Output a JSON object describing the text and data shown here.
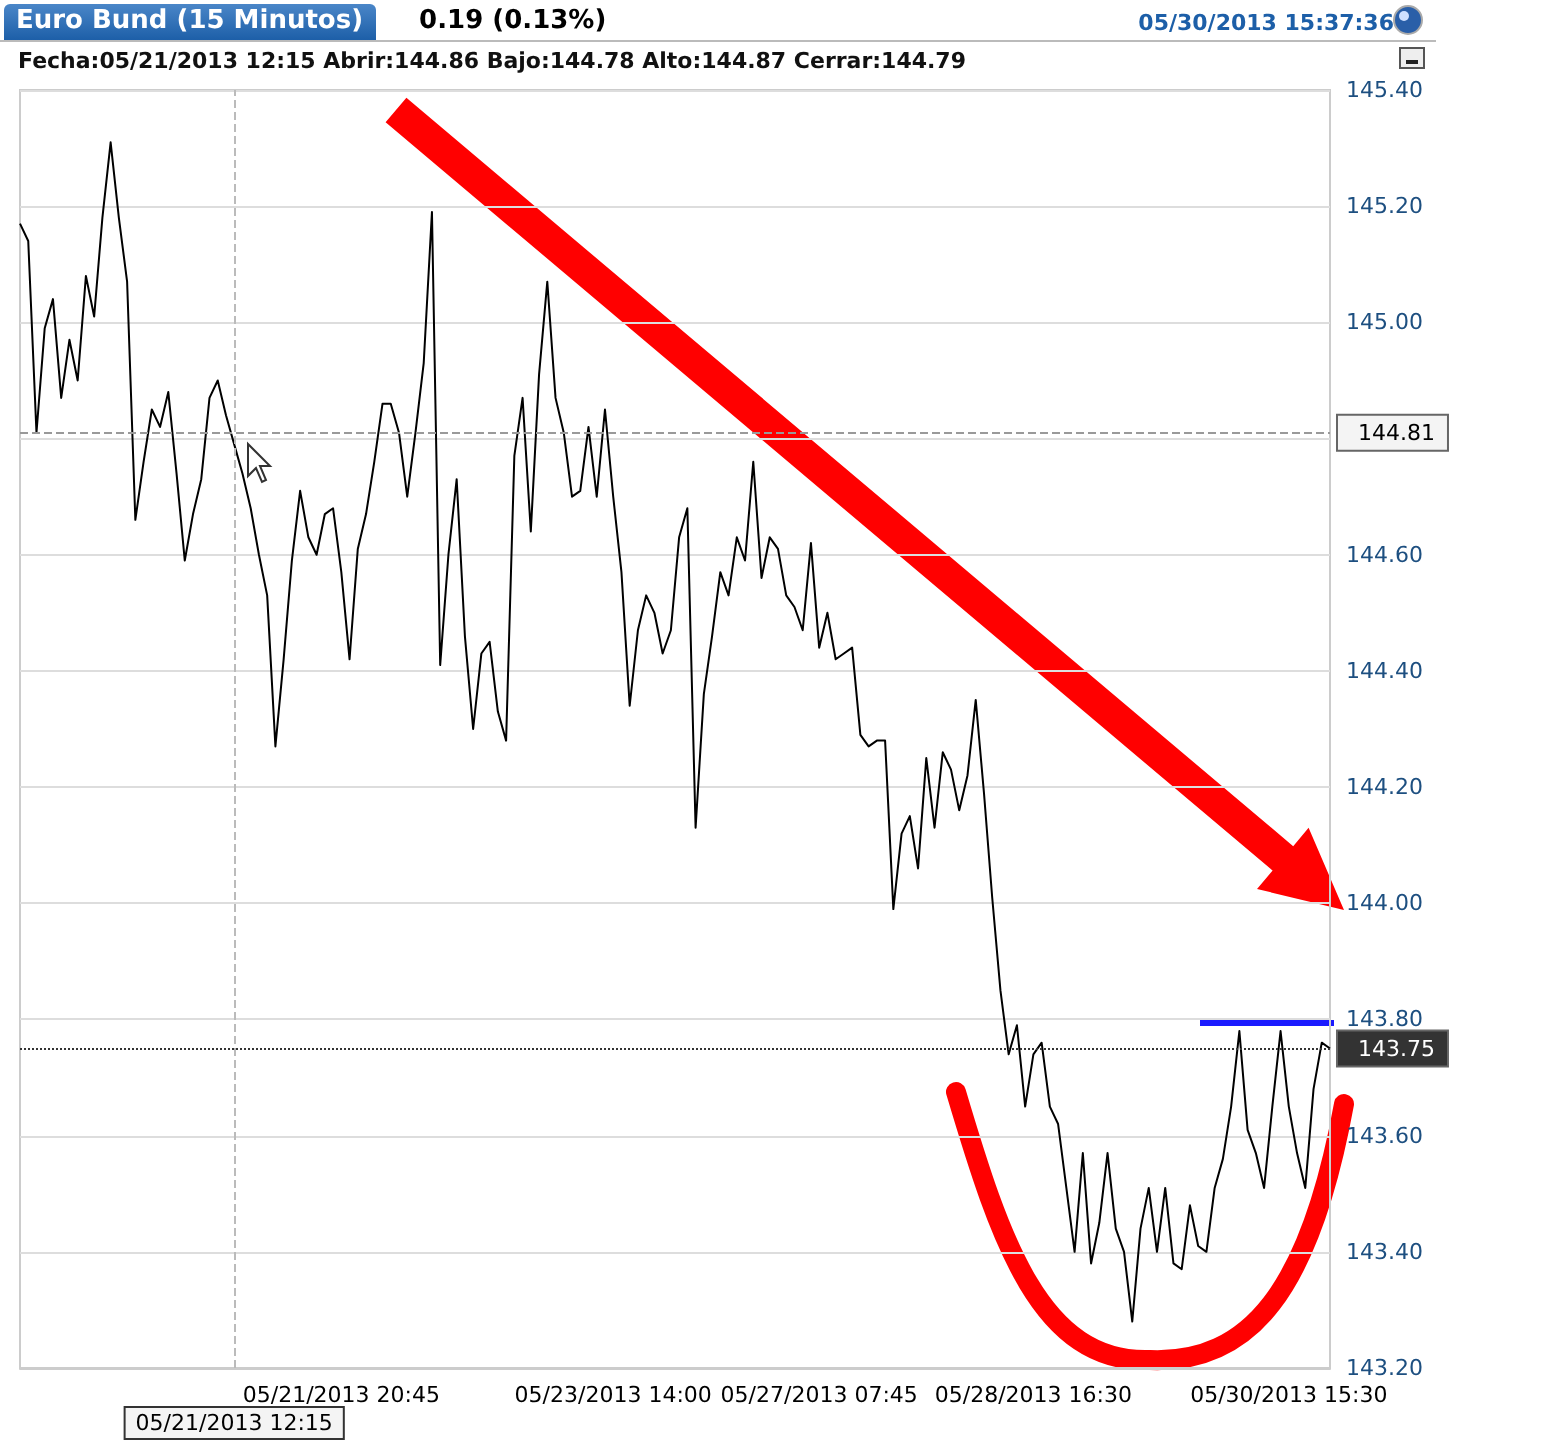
{
  "chart_data": {
    "type": "line",
    "title": "Euro Bund (15 Minutos)",
    "subtitle": "0.19 (0.13%)",
    "annotations": [
      "05/30/2013 15:37:36",
      "Fecha:05/21/2013 12:15 Abrir:144.86 Bajo:144.78 Alto:144.87 Cerrar:144.79"
    ],
    "categories": [
      null,
      null,
      null,
      null,
      null,
      null,
      null,
      null,
      null,
      null,
      null,
      null,
      null,
      null,
      null,
      null,
      null,
      null,
      null,
      null,
      null,
      null,
      null,
      null,
      null,
      null,
      "05/21/2013 12:15",
      null,
      null,
      null,
      null,
      null,
      null,
      null,
      null,
      null,
      null,
      null,
      null,
      "05/21/2013 20:45",
      null,
      null,
      null,
      null,
      null,
      null,
      null,
      null,
      null,
      null,
      null,
      null,
      null,
      null,
      null,
      null,
      null,
      null,
      null,
      null,
      null,
      null,
      null,
      null,
      null,
      null,
      null,
      null,
      null,
      null,
      null,
      null,
      "05/23/2013 14:00",
      null,
      null,
      null,
      null,
      null,
      null,
      null,
      null,
      null,
      null,
      null,
      null,
      null,
      null,
      null,
      null,
      null,
      null,
      null,
      null,
      null,
      null,
      null,
      null,
      "05/27/2013 07:45",
      null,
      null,
      null,
      null,
      null,
      null,
      null,
      null,
      null,
      null,
      null,
      null,
      null,
      null,
      null,
      null,
      null,
      null,
      null,
      null,
      null,
      null,
      null,
      null,
      null,
      "05/28/2013 16:30",
      null,
      null,
      null,
      null,
      null,
      null,
      null,
      null,
      null,
      null,
      null,
      null,
      null,
      null,
      null,
      null,
      null,
      null,
      null,
      null,
      null,
      null,
      null,
      null,
      null,
      null,
      null,
      null,
      null,
      null,
      "05/30/2013 15:30",
      null,
      null,
      null,
      null,
      null
    ],
    "series": [
      {
        "color": "#000000",
        "values": [
          145.17,
          145.14,
          144.81,
          144.99,
          145.04,
          144.87,
          144.97,
          144.9,
          145.08,
          145.01,
          145.18,
          145.31,
          145.18,
          145.07,
          144.66,
          144.76,
          144.85,
          144.82,
          144.88,
          144.74,
          144.59,
          144.67,
          144.73,
          144.87,
          144.9,
          144.84,
          144.79,
          144.74,
          144.68,
          144.6,
          144.53,
          144.27,
          144.42,
          144.59,
          144.71,
          144.63,
          144.6,
          144.67,
          144.68,
          144.57,
          144.42,
          144.61,
          144.67,
          144.76,
          144.86,
          144.86,
          144.81,
          144.7,
          144.81,
          144.93,
          145.19,
          144.41,
          144.6,
          144.73,
          144.46,
          144.3,
          144.43,
          144.45,
          144.33,
          144.28,
          144.77,
          144.87,
          144.64,
          144.91,
          145.07,
          144.87,
          144.81,
          144.7,
          144.71,
          144.82,
          144.7,
          144.85,
          144.7,
          144.57,
          144.34,
          144.47,
          144.53,
          144.5,
          144.43,
          144.47,
          144.63,
          144.68,
          144.13,
          144.36,
          144.46,
          144.57,
          144.53,
          144.63,
          144.59,
          144.76,
          144.56,
          144.63,
          144.61,
          144.53,
          144.51,
          144.47,
          144.62,
          144.44,
          144.5,
          144.42,
          144.43,
          144.44,
          144.29,
          144.27,
          144.28,
          144.28,
          143.99,
          144.12,
          144.15,
          144.06,
          144.25,
          144.13,
          144.26,
          144.23,
          144.16,
          144.22,
          144.35,
          144.19,
          144.01,
          143.85,
          143.74,
          143.79,
          143.65,
          143.74,
          143.76,
          143.65,
          143.62,
          143.51,
          143.4,
          143.57,
          143.38,
          143.45,
          143.57,
          143.44,
          143.4,
          143.28,
          143.44,
          143.51,
          143.4,
          143.51,
          143.38,
          143.37,
          143.48,
          143.41,
          143.4,
          143.51,
          143.56,
          143.65,
          143.78,
          143.61,
          143.57,
          143.51,
          143.65,
          143.78,
          143.65,
          143.57,
          143.51,
          143.68,
          143.76,
          143.75
        ]
      }
    ],
    "ylim": [
      143.2,
      145.4
    ],
    "yticks": [
      {
        "value": 143.2,
        "label": "143.20"
      },
      {
        "value": 143.4,
        "label": "143.40"
      },
      {
        "value": 143.6,
        "label": "143.60"
      },
      {
        "value": 143.8,
        "label": "143.80"
      },
      {
        "value": 144.0,
        "label": "144.00"
      },
      {
        "value": 144.2,
        "label": "144.20"
      },
      {
        "value": 144.4,
        "label": "144.40"
      },
      {
        "value": 144.6,
        "label": "144.60"
      },
      {
        "value": 144.8,
        "label": null
      },
      {
        "value": 145.0,
        "label": "145.00"
      },
      {
        "value": 145.2,
        "label": "145.20"
      },
      {
        "value": 145.4,
        "label": "145.40"
      }
    ],
    "ref_lines": [
      {
        "axis": "y",
        "value": 144.81,
        "label": "144.81",
        "color": "#999999",
        "line_style": "dashed"
      },
      {
        "axis": "y",
        "value": 143.75,
        "label": "143.75",
        "color": "#333333",
        "line_style": "dotted"
      },
      {
        "axis": "x",
        "value": "05/21/2013 12:15",
        "label": null,
        "color": "#bbbbbb",
        "line_style": "dashed"
      }
    ],
    "grid": "y",
    "marker": "none",
    "line_style": "solid"
  }
}
